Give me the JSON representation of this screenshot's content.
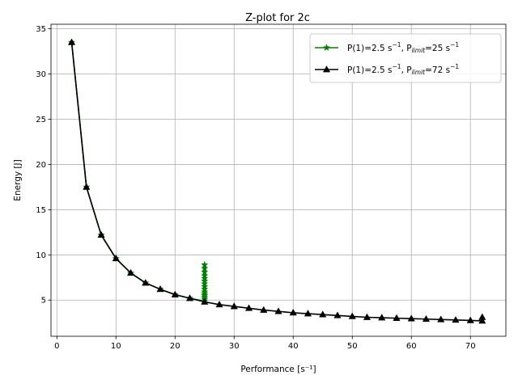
{
  "chart_data": {
    "type": "line",
    "title": "Z-plot for 2c",
    "xlabel": "Performance [s⁻¹]",
    "ylabel": "Energy [J]",
    "xlim": [
      -1,
      76
    ],
    "ylim": [
      1.0,
      35.5
    ],
    "xticks": [
      0,
      10,
      20,
      30,
      40,
      50,
      60,
      70
    ],
    "yticks": [
      5,
      10,
      15,
      20,
      25,
      30,
      35
    ],
    "grid": true,
    "legend_position": "top-right",
    "series": [
      {
        "name": "P(1)=2.5 s⁻¹, P_limit=25 s⁻¹",
        "legend": {
          "prefix": "P(1)=2.5 s",
          "sup1": "−1",
          "mid": ", P",
          "sub": "limit",
          "mid2": "=25 s",
          "sup2": "−1"
        },
        "color": "#008000",
        "marker": "star",
        "x": [
          2.5,
          5,
          7.5,
          10,
          12.5,
          15,
          17.5,
          20,
          22.5,
          25,
          25,
          25,
          25,
          25,
          25,
          25,
          25,
          25,
          25,
          25,
          25,
          25,
          25,
          25
        ],
        "y": [
          33.5,
          17.5,
          12.2,
          9.6,
          8.0,
          6.9,
          6.2,
          5.6,
          5.2,
          4.9,
          5.1,
          5.3,
          5.5,
          5.7,
          5.9,
          6.2,
          6.5,
          6.8,
          7.1,
          7.4,
          7.7,
          8.1,
          8.5,
          8.9
        ]
      },
      {
        "name": "P(1)=2.5 s⁻¹, P_limit=72 s⁻¹",
        "legend": {
          "prefix": "P(1)=2.5 s",
          "sup1": "−1",
          "mid": ", P",
          "sub": "limit",
          "mid2": "=72 s",
          "sup2": "−1"
        },
        "color": "#000000",
        "marker": "triangle",
        "x": [
          2.5,
          5,
          7.5,
          10,
          12.5,
          15,
          17.5,
          20,
          22.5,
          25,
          27.5,
          30,
          32.5,
          35,
          37.5,
          40,
          42.5,
          45,
          47.5,
          50,
          52.5,
          55,
          57.5,
          60,
          62.5,
          65,
          67.5,
          70,
          72,
          72
        ],
        "y": [
          33.5,
          17.5,
          12.2,
          9.6,
          8.0,
          6.9,
          6.2,
          5.6,
          5.2,
          4.8,
          4.5,
          4.3,
          4.1,
          3.9,
          3.75,
          3.6,
          3.5,
          3.4,
          3.3,
          3.2,
          3.1,
          3.05,
          3.0,
          2.95,
          2.9,
          2.85,
          2.8,
          2.75,
          2.7,
          3.1
        ]
      }
    ]
  }
}
